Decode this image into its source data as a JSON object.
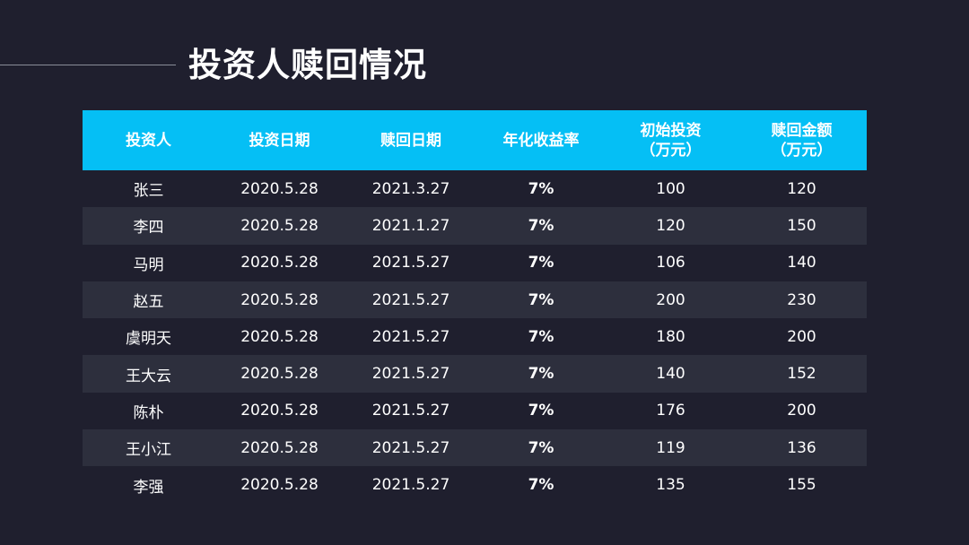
{
  "title": "投资人赎回情况",
  "table": {
    "headers": [
      "投资人",
      "投资日期",
      "赎回日期",
      "年化收益率",
      "初始投资\n（万元）",
      "赎回金额\n（万元）"
    ],
    "rows": [
      [
        "张三",
        "2020.5.28",
        "2021.3.27",
        "7%",
        "100",
        "120"
      ],
      [
        "李四",
        "2020.5.28",
        "2021.1.27",
        "7%",
        "120",
        "150"
      ],
      [
        "马明",
        "2020.5.28",
        "2021.5.27",
        "7%",
        "106",
        "140"
      ],
      [
        "赵五",
        "2020.5.28",
        "2021.5.27",
        "7%",
        "200",
        "230"
      ],
      [
        "虞明天",
        "2020.5.28",
        "2021.5.27",
        "7%",
        "180",
        "200"
      ],
      [
        "王大云",
        "2020.5.28",
        "2021.5.27",
        "7%",
        "140",
        "152"
      ],
      [
        "陈朴",
        "2020.5.28",
        "2021.5.27",
        "7%",
        "176",
        "200"
      ],
      [
        "王小江",
        "2020.5.28",
        "2021.5.27",
        "7%",
        "119",
        "136"
      ],
      [
        "李强",
        "2020.5.28",
        "2021.5.27",
        "7%",
        "135",
        "155"
      ]
    ]
  },
  "colors": {
    "background": "#1f1f2e",
    "header": "#05bff5",
    "alt_row": "#2d2f3d",
    "text": "#ffffff"
  }
}
